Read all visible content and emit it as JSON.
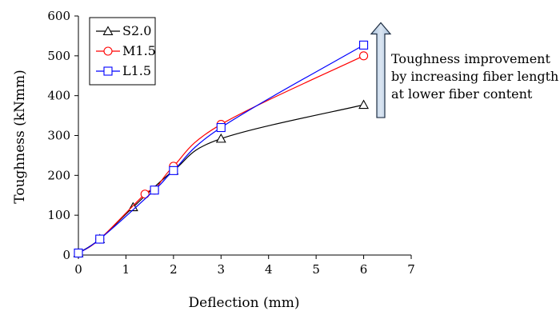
{
  "chart_data": {
    "type": "line",
    "title": "",
    "xlabel": "Deflection (mm)",
    "ylabel": "Toughness (kNmm)",
    "xlim": [
      0,
      7
    ],
    "ylim": [
      0,
      600
    ],
    "xticks": [
      "0",
      "1",
      "2",
      "3",
      "4",
      "5",
      "6",
      "7"
    ],
    "yticks": [
      "0",
      "100",
      "200",
      "300",
      "400",
      "500",
      "600"
    ],
    "grid": false,
    "legend_position": "top-left",
    "series": [
      {
        "name": "S2.0",
        "color": "#000000",
        "marker": "triangle",
        "x": [
          0,
          0.45,
          1.15,
          2.0,
          3.0,
          6.0
        ],
        "y": [
          5,
          40,
          120,
          212,
          292,
          377
        ]
      },
      {
        "name": "M1.5",
        "color": "#ff0000",
        "marker": "circle",
        "x": [
          0,
          0.45,
          1.4,
          1.6,
          2.0,
          3.0,
          6.0
        ],
        "y": [
          5,
          40,
          153,
          163,
          223,
          328,
          500
        ]
      },
      {
        "name": "L1.5",
        "color": "#0000ff",
        "marker": "square",
        "x": [
          0,
          0.45,
          1.6,
          2.0,
          3.0,
          6.0
        ],
        "y": [
          5,
          40,
          163,
          212,
          320,
          527
        ]
      }
    ],
    "annotation": {
      "lines": [
        "Toughness improvement",
        "by increasing fiber length",
        "at lower fiber content"
      ],
      "arrow_from": 345,
      "arrow_to": 583,
      "arrow_color": "#b8cce4"
    }
  }
}
